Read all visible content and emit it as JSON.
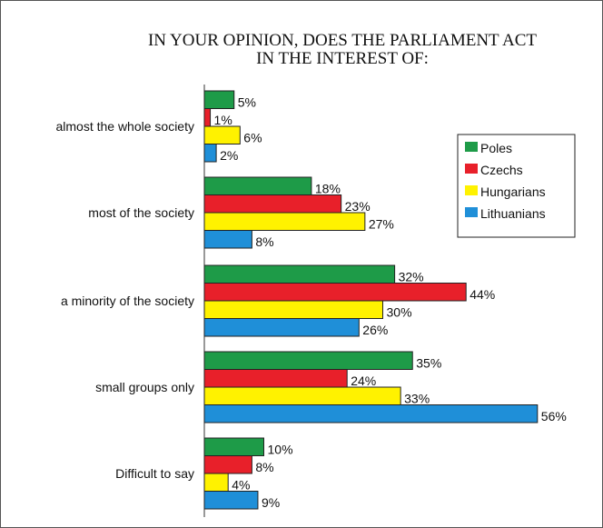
{
  "chart_data": {
    "type": "bar",
    "orientation": "horizontal",
    "title_lines": [
      "IN YOUR OPINION, DOES THE PARLIAMENT ACT",
      "IN THE INTEREST OF:"
    ],
    "categories": [
      "almost the whole society",
      "most of the society",
      "a minority of the society",
      "small groups only",
      "Difficult to say"
    ],
    "series": [
      {
        "name": "Poles",
        "color": "#1e9b48",
        "values": [
          5,
          18,
          32,
          35,
          10
        ]
      },
      {
        "name": "Czechs",
        "color": "#e8202a",
        "values": [
          1,
          23,
          44,
          24,
          8
        ]
      },
      {
        "name": "Hungarians",
        "color": "#fff200",
        "values": [
          6,
          27,
          30,
          33,
          4
        ]
      },
      {
        "name": "Lithuanians",
        "color": "#1f8fd8",
        "values": [
          2,
          8,
          26,
          56,
          9
        ]
      }
    ],
    "value_suffix": "%",
    "xlim": [
      0,
      56
    ],
    "grid": false,
    "legend_position": "top-right"
  }
}
